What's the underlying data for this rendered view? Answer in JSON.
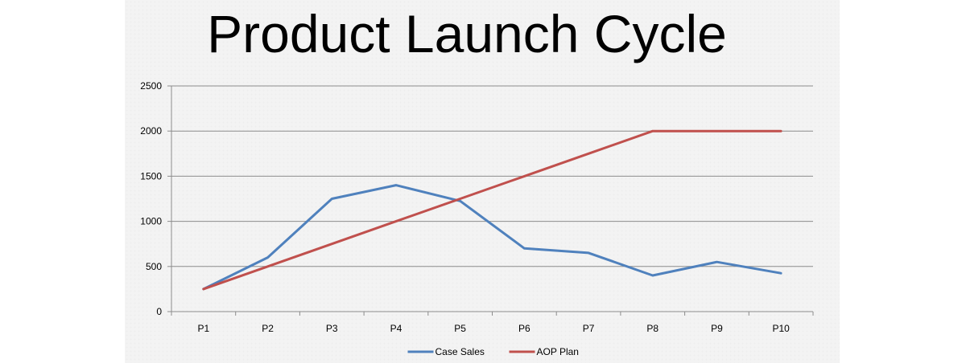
{
  "slide": {
    "title": "Product Launch Cycle"
  },
  "chart_data": {
    "type": "line",
    "title": "",
    "xlabel": "",
    "ylabel": "",
    "categories": [
      "P1",
      "P2",
      "P3",
      "P4",
      "P5",
      "P6",
      "P7",
      "P8",
      "P9",
      "P10"
    ],
    "ylim": [
      0,
      2500
    ],
    "yticks": [
      0,
      500,
      1000,
      1500,
      2000,
      2500
    ],
    "grid": true,
    "legend": "bottom",
    "series": [
      {
        "name": "Case Sales",
        "color": "#4f81bd",
        "values": [
          250,
          600,
          1250,
          1400,
          1225,
          700,
          650,
          400,
          550,
          425
        ]
      },
      {
        "name": "AOP Plan",
        "color": "#c0504d",
        "values": [
          250,
          500,
          750,
          1000,
          1250,
          1500,
          1750,
          2000,
          2000,
          2000
        ]
      }
    ]
  }
}
